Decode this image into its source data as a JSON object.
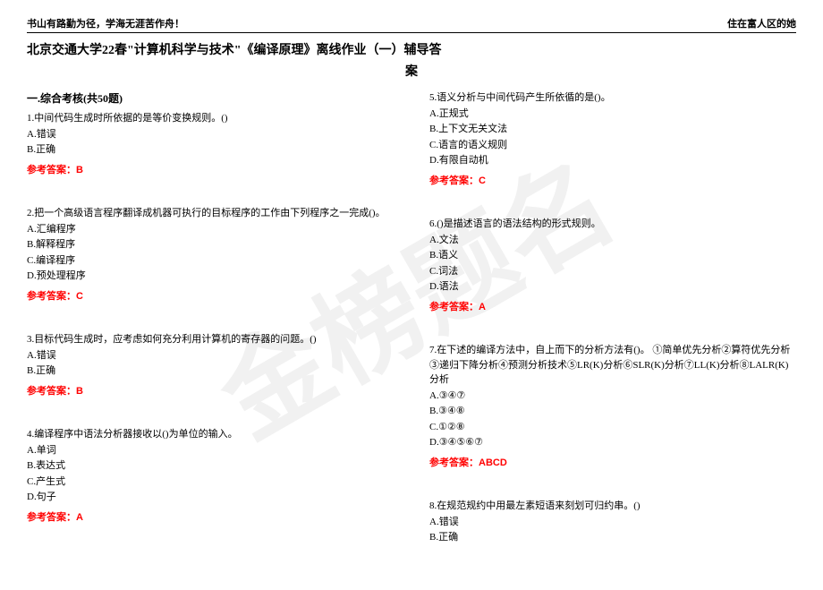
{
  "header": {
    "left": "书山有路勤为径，学海无涯苦作舟！",
    "right": "住在富人区的她"
  },
  "title": "北京交通大学22春\"计算机科学与技术\"《编译原理》离线作业（一）辅导答",
  "title_suffix": "案",
  "section": "一.综合考核(共50题)",
  "watermark": "金榜题名",
  "answer_label": "参考答案：",
  "left_questions": [
    {
      "num": "1.",
      "text": "中间代码生成时所依据的是等价变换规则。()",
      "options": [
        "A.错误",
        "B.正确"
      ],
      "answer": "B"
    },
    {
      "num": "2.",
      "text": "把一个高级语言程序翻译成机器可执行的目标程序的工作由下列程序之一完成()。",
      "options": [
        "A.汇编程序",
        "B.解释程序",
        "C.编译程序",
        "D.预处理程序"
      ],
      "answer": "C"
    },
    {
      "num": "3.",
      "text": "目标代码生成时，应考虑如何充分利用计算机的寄存器的问题。()",
      "options": [
        "A.错误",
        "B.正确"
      ],
      "answer": "B"
    },
    {
      "num": "4.",
      "text": "编译程序中语法分析器接收以()为单位的输入。",
      "options": [
        "A.单词",
        "B.表达式",
        "C.产生式",
        "D.句子"
      ],
      "answer": "A"
    }
  ],
  "right_questions": [
    {
      "num": "5.",
      "text": "语义分析与中间代码产生所依循的是()。",
      "options": [
        "A.正规式",
        "B.上下文无关文法",
        "C.语言的语义规则",
        "D.有限自动机"
      ],
      "answer": "C"
    },
    {
      "num": "6.",
      "text": "()是描述语言的语法结构的形式规则。",
      "options": [
        "A.文法",
        "B.语义",
        "C.词法",
        "D.语法"
      ],
      "answer": "A"
    },
    {
      "num": "7.",
      "text": "在下述的编译方法中，自上而下的分析方法有()。 ①简单优先分析②算符优先分析③递归下降分析④预测分析技术⑤LR(K)分析⑥SLR(K)分析⑦LL(K)分析⑧LALR(K)分析",
      "options": [
        "A.③④⑦",
        "B.③④⑧",
        "C.①②⑧",
        "D.③④⑤⑥⑦"
      ],
      "answer": "ABCD"
    },
    {
      "num": "8.",
      "text": "在规范规约中用最左素短语来刻划可归约串。()",
      "options": [
        "A.错误",
        "B.正确"
      ],
      "answer": ""
    }
  ]
}
